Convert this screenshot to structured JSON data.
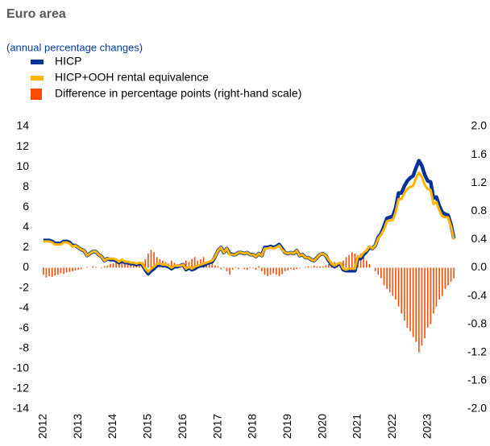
{
  "chart_data": {
    "type": "line",
    "title": "Euro area",
    "subtitle": "(annual percentage changes)",
    "categories": [
      "2012",
      null,
      null,
      null,
      null,
      null,
      null,
      null,
      null,
      null,
      null,
      null,
      "2013",
      null,
      null,
      null,
      null,
      null,
      null,
      null,
      null,
      null,
      null,
      null,
      "2014",
      null,
      null,
      null,
      null,
      null,
      null,
      null,
      null,
      null,
      null,
      null,
      "2015",
      null,
      null,
      null,
      null,
      null,
      null,
      null,
      null,
      null,
      null,
      null,
      "2016",
      null,
      null,
      null,
      null,
      null,
      null,
      null,
      null,
      null,
      null,
      null,
      "2017",
      null,
      null,
      null,
      null,
      null,
      null,
      null,
      null,
      null,
      null,
      null,
      "2018",
      null,
      null,
      null,
      null,
      null,
      null,
      null,
      null,
      null,
      null,
      null,
      "2019",
      null,
      null,
      null,
      null,
      null,
      null,
      null,
      null,
      null,
      null,
      null,
      "2020",
      null,
      null,
      null,
      null,
      null,
      null,
      null,
      null,
      null,
      null,
      null,
      "2021",
      null,
      null,
      null,
      null,
      null,
      null,
      null,
      null,
      null,
      null,
      null,
      "2022",
      null,
      null,
      null,
      null,
      null,
      null,
      null,
      null,
      null,
      null,
      null,
      "2023",
      null,
      null,
      null,
      null,
      null,
      null,
      null,
      null,
      null
    ],
    "series": [
      {
        "name": "HICP",
        "type": "line",
        "color": "#003299",
        "values": [
          2.7,
          2.7,
          2.7,
          2.6,
          2.4,
          2.4,
          2.4,
          2.6,
          2.6,
          2.5,
          2.2,
          2.2,
          2.0,
          1.8,
          1.7,
          1.2,
          1.4,
          1.6,
          1.6,
          1.3,
          1.1,
          0.7,
          0.9,
          0.8,
          0.8,
          0.7,
          0.5,
          0.7,
          0.5,
          0.5,
          0.4,
          0.4,
          0.3,
          0.4,
          0.3,
          -0.2,
          -0.6,
          -0.3,
          -0.1,
          0.2,
          0.3,
          0.2,
          0.2,
          0.1,
          -0.1,
          0.1,
          0.1,
          0.2,
          0.3,
          -0.2,
          0.0,
          -0.2,
          -0.1,
          0.1,
          0.2,
          0.2,
          0.4,
          0.5,
          0.6,
          1.1,
          1.7,
          2.0,
          1.5,
          1.9,
          1.4,
          1.3,
          1.3,
          1.5,
          1.5,
          1.4,
          1.5,
          1.3,
          1.3,
          1.1,
          1.4,
          1.2,
          2.0,
          2.0,
          2.1,
          2.0,
          2.1,
          2.3,
          1.9,
          1.5,
          1.4,
          1.5,
          1.4,
          1.7,
          1.2,
          1.3,
          1.0,
          1.0,
          0.8,
          0.7,
          1.0,
          1.3,
          1.4,
          1.2,
          0.7,
          0.3,
          0.1,
          0.3,
          0.4,
          -0.2,
          -0.3,
          -0.3,
          -0.3,
          -0.3,
          0.9,
          0.9,
          1.3,
          1.6,
          2.0,
          1.9,
          2.2,
          3.0,
          3.4,
          4.1,
          4.9,
          5.0,
          5.1,
          5.9,
          7.4,
          7.4,
          8.1,
          8.6,
          8.9,
          9.1,
          9.9,
          10.6,
          10.1,
          9.2,
          8.6,
          8.5,
          6.9,
          7.0,
          6.1,
          5.5,
          5.3,
          5.2,
          4.3,
          2.9
        ]
      },
      {
        "name": "HICP+OOH rental equivalence",
        "type": "line",
        "color": "#ffb400",
        "values": [
          2.6,
          2.6,
          2.6,
          2.5,
          2.3,
          2.3,
          2.3,
          2.5,
          2.5,
          2.4,
          2.1,
          2.2,
          2.0,
          1.8,
          1.7,
          1.2,
          1.4,
          1.6,
          1.6,
          1.3,
          1.1,
          0.7,
          0.9,
          0.9,
          0.9,
          0.8,
          0.6,
          0.8,
          0.6,
          0.6,
          0.5,
          0.5,
          0.4,
          0.5,
          0.4,
          -0.1,
          -0.4,
          -0.1,
          0.1,
          0.4,
          0.4,
          0.3,
          0.3,
          0.2,
          0.0,
          0.2,
          0.2,
          0.2,
          0.3,
          -0.1,
          0.1,
          -0.1,
          0.1,
          0.2,
          0.3,
          0.4,
          0.5,
          0.6,
          0.7,
          1.1,
          1.7,
          2.0,
          1.5,
          1.9,
          1.3,
          1.3,
          1.3,
          1.5,
          1.5,
          1.4,
          1.5,
          1.3,
          1.3,
          1.1,
          1.4,
          1.2,
          1.9,
          1.9,
          2.0,
          1.9,
          2.0,
          2.2,
          1.8,
          1.5,
          1.4,
          1.5,
          1.4,
          1.7,
          1.2,
          1.3,
          1.0,
          1.0,
          0.8,
          0.7,
          1.0,
          1.3,
          1.4,
          1.2,
          0.8,
          0.4,
          0.2,
          0.4,
          0.5,
          -0.1,
          -0.2,
          -0.1,
          -0.1,
          -0.1,
          1.1,
          1.1,
          1.5,
          1.7,
          2.1,
          1.9,
          2.2,
          2.9,
          3.3,
          3.8,
          4.6,
          4.7,
          4.7,
          5.5,
          6.8,
          6.8,
          7.4,
          7.8,
          8.0,
          8.1,
          8.9,
          9.4,
          9.0,
          8.2,
          7.8,
          7.7,
          6.3,
          6.5,
          5.7,
          5.1,
          5.0,
          5.0,
          4.1,
          2.8
        ]
      },
      {
        "name": "Difference in percentage points (right-hand scale)",
        "type": "bar",
        "axis": "y2",
        "color": "#ff4b00",
        "values": [
          -0.1,
          -0.14,
          -0.12,
          -0.13,
          -0.11,
          -0.1,
          -0.08,
          -0.09,
          -0.07,
          -0.06,
          -0.05,
          -0.04,
          -0.03,
          -0.02,
          0.0,
          0.01,
          0.0,
          0.02,
          0.01,
          0.0,
          -0.01,
          0.02,
          0.03,
          0.05,
          0.06,
          0.08,
          0.1,
          0.07,
          0.06,
          0.08,
          0.07,
          0.06,
          0.05,
          0.06,
          0.08,
          0.12,
          0.2,
          0.25,
          0.22,
          0.15,
          0.12,
          0.1,
          0.08,
          0.06,
          0.1,
          0.07,
          0.05,
          0.04,
          0.03,
          0.1,
          0.08,
          0.12,
          0.15,
          0.1,
          0.12,
          0.15,
          0.08,
          0.1,
          0.06,
          0.03,
          0.02,
          -0.02,
          0.01,
          -0.05,
          -0.1,
          -0.03,
          0.01,
          -0.02,
          0.0,
          -0.02,
          -0.03,
          0.01,
          -0.01,
          -0.03,
          0.02,
          -0.05,
          -0.1,
          -0.12,
          -0.1,
          -0.08,
          -0.1,
          -0.12,
          -0.09,
          -0.05,
          -0.04,
          -0.02,
          -0.03,
          -0.02,
          -0.01,
          0.0,
          0.01,
          0.02,
          0.01,
          0.03,
          0.02,
          0.02,
          0.02,
          0.03,
          0.05,
          0.06,
          0.08,
          0.07,
          0.05,
          0.1,
          0.15,
          0.18,
          0.22,
          0.2,
          0.18,
          0.2,
          0.15,
          0.1,
          0.05,
          0.0,
          -0.05,
          -0.1,
          -0.15,
          -0.25,
          -0.3,
          -0.35,
          -0.4,
          -0.45,
          -0.55,
          -0.65,
          -0.75,
          -0.85,
          -0.9,
          -0.98,
          -1.05,
          -1.2,
          -1.1,
          -1.0,
          -0.85,
          -0.8,
          -0.65,
          -0.55,
          -0.45,
          -0.4,
          -0.3,
          -0.25,
          -0.2,
          -0.15
        ]
      }
    ],
    "ylim": [
      -14,
      14
    ],
    "yticks": [
      -14,
      -12,
      -10,
      -8,
      -6,
      -4,
      -2,
      0,
      2,
      4,
      6,
      8,
      10,
      12,
      14
    ],
    "y2lim": [
      -2,
      2
    ],
    "y2ticks": [
      {
        "value": -2,
        "label": "-2.0"
      },
      -1.6,
      -1.2,
      -0.8,
      -0.4,
      {
        "value": 0,
        "label": "0.0"
      },
      0.4,
      0.8,
      1.2,
      1.6,
      {
        "value": 2,
        "label": "2.0"
      }
    ]
  }
}
